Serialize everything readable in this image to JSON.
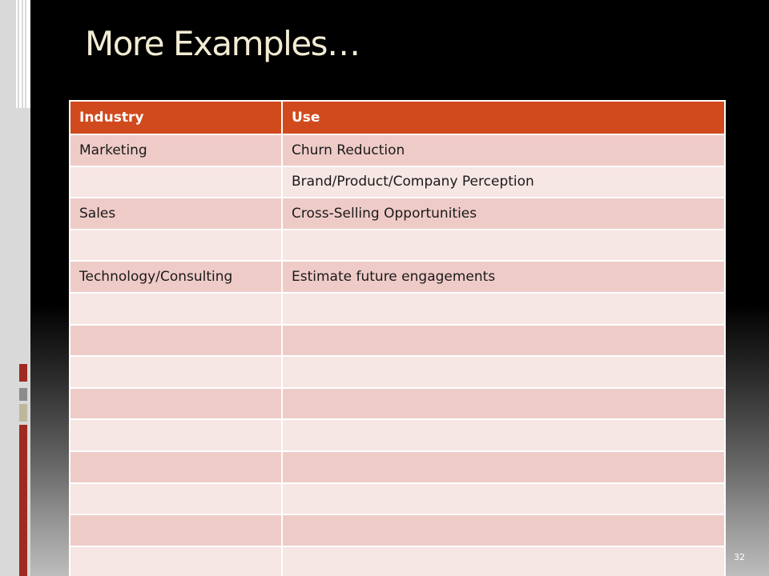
{
  "slide": {
    "title": "More Examples…",
    "page_number": "32"
  },
  "table": {
    "headers": [
      "Industry",
      "Use"
    ],
    "rows": [
      [
        "Marketing",
        "Churn Reduction"
      ],
      [
        "",
        "Brand/Product/Company Perception"
      ],
      [
        "Sales",
        "Cross-Selling Opportunities"
      ],
      [
        "",
        ""
      ],
      [
        "Technology/Consulting",
        "Estimate future engagements"
      ],
      [
        "",
        ""
      ],
      [
        "",
        ""
      ],
      [
        "",
        ""
      ],
      [
        "",
        ""
      ],
      [
        "",
        ""
      ],
      [
        "",
        ""
      ],
      [
        "",
        ""
      ],
      [
        "",
        ""
      ],
      [
        "",
        ""
      ]
    ]
  },
  "colors": {
    "header_bg": "#d04a1d",
    "row_odd": "#efcbc8",
    "row_even": "#f6e6e4",
    "title": "#f2ecd3"
  }
}
